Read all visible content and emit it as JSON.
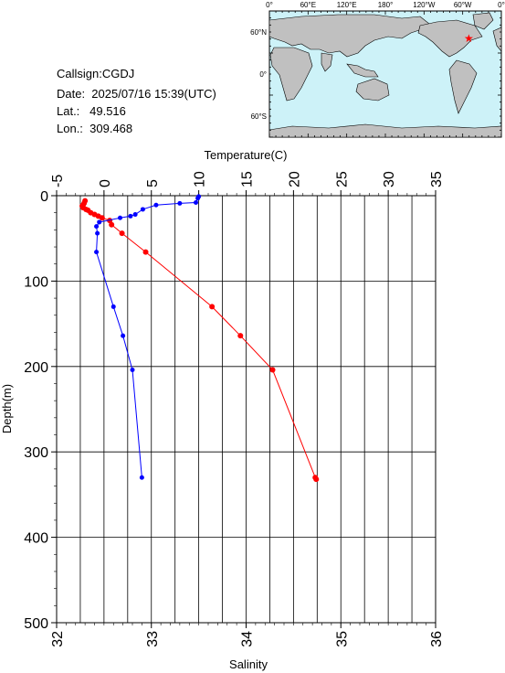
{
  "header": {
    "callsign": "Callsign:CGDJ",
    "date": "Date:  2025/07/16 15:39(UTC)",
    "lat": "Lat.:   49.516",
    "lon": "Lon.:  309.468"
  },
  "map": {
    "lon_labels": [
      "0°",
      "60°E",
      "120°E",
      "180°",
      "120°W",
      "60°W",
      "0°"
    ],
    "lat_labels": [
      "60°N",
      "0°",
      "60°S"
    ],
    "ocean_color": "#cdf2f8",
    "land_color": "#c0c0c0",
    "marker_color": "#ff0000",
    "marker": {
      "lat": 49.516,
      "lon": 309.468
    }
  },
  "chart_data": {
    "type": "scatter",
    "title": "",
    "x_top_label": "Temperature(C)",
    "x_bottom_label": "Salinity",
    "ylabel": "Depth(m)",
    "temperature_ticks": [
      "-5",
      "0",
      "5",
      "10",
      "15",
      "20",
      "25",
      "30",
      "35"
    ],
    "salinity_ticks": [
      "32",
      "33",
      "34",
      "35",
      "36"
    ],
    "depth_ticks": [
      "0",
      "100",
      "200",
      "300",
      "400",
      "500"
    ],
    "temperature_range": [
      -5,
      35
    ],
    "salinity_range": [
      32,
      36
    ],
    "depth_range": [
      0,
      500
    ],
    "y_reversed": true,
    "grid": true,
    "series": [
      {
        "quantity": "temperature",
        "color": "#ff0000",
        "points": [
          {
            "value": -2.0,
            "depth": 6
          },
          {
            "value": -2.1,
            "depth": 9
          },
          {
            "value": -2.2,
            "depth": 11
          },
          {
            "value": -2.3,
            "depth": 12
          },
          {
            "value": -2.2,
            "depth": 14
          },
          {
            "value": -1.9,
            "depth": 16
          },
          {
            "value": -1.7,
            "depth": 17
          },
          {
            "value": -1.4,
            "depth": 20
          },
          {
            "value": -1.0,
            "depth": 22
          },
          {
            "value": -0.6,
            "depth": 24
          },
          {
            "value": -0.2,
            "depth": 26
          },
          {
            "value": 0.6,
            "depth": 29
          },
          {
            "value": 0.8,
            "depth": 34
          },
          {
            "value": 1.9,
            "depth": 44
          },
          {
            "value": 4.4,
            "depth": 66
          },
          {
            "value": 11.4,
            "depth": 130
          },
          {
            "value": 14.4,
            "depth": 164
          },
          {
            "value": 17.8,
            "depth": 204
          },
          {
            "value": 22.3,
            "depth": 330
          },
          {
            "value": 22.4,
            "depth": 332
          }
        ]
      },
      {
        "quantity": "salinity",
        "color": "#0000ff",
        "points": [
          {
            "value": 33.5,
            "depth": 1
          },
          {
            "value": 33.49,
            "depth": 3
          },
          {
            "value": 33.47,
            "depth": 8
          },
          {
            "value": 33.3,
            "depth": 9
          },
          {
            "value": 33.05,
            "depth": 11
          },
          {
            "value": 32.91,
            "depth": 16
          },
          {
            "value": 32.83,
            "depth": 22
          },
          {
            "value": 32.78,
            "depth": 24
          },
          {
            "value": 32.67,
            "depth": 26
          },
          {
            "value": 32.45,
            "depth": 31
          },
          {
            "value": 32.42,
            "depth": 36
          },
          {
            "value": 32.43,
            "depth": 44
          },
          {
            "value": 32.42,
            "depth": 66
          },
          {
            "value": 32.6,
            "depth": 130
          },
          {
            "value": 32.7,
            "depth": 164
          },
          {
            "value": 32.8,
            "depth": 204
          },
          {
            "value": 32.9,
            "depth": 330
          }
        ]
      }
    ]
  }
}
